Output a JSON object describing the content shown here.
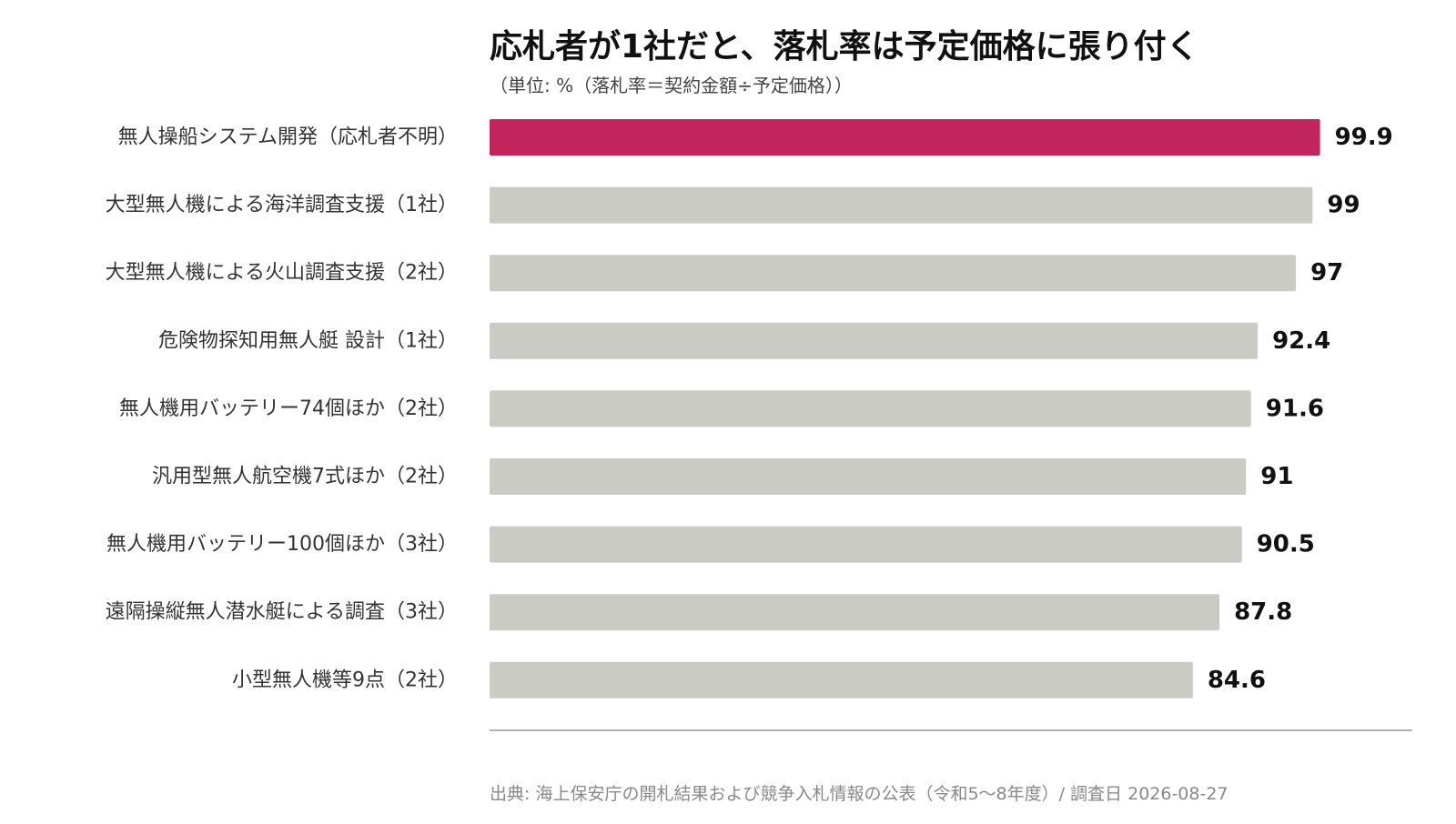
{
  "chart_data": {
    "type": "bar",
    "orientation": "horizontal",
    "title": "応札者が1社だと、落札率は予定価格に張り付く",
    "subtitle": "（単位: %（落札率＝契約金額÷予定価格））",
    "categories": [
      "無人操船システム開発（応札者不明）",
      "大型無人機による海洋調査支援（1社）",
      "大型無人機による火山調査支援（2社）",
      "危険物探知用無人艇 設計（1社）",
      "無人機用バッテリー74個ほか（2社）",
      "汎用型無人航空機7式ほか（2社）",
      "無人機用バッテリー100個ほか（3社）",
      "遠隔操縦無人潜水艇による調査（3社）",
      "小型無人機等9点（2社）"
    ],
    "values": [
      99.9,
      99,
      97,
      92.4,
      91.6,
      91,
      90.5,
      87.8,
      84.6
    ],
    "value_labels": [
      "99.9",
      "99",
      "97",
      "92.4",
      "91.6",
      "91",
      "90.5",
      "87.8",
      "84.6"
    ],
    "highlight_index": 0,
    "xlim": [
      0,
      111
    ],
    "grid": false,
    "colors": {
      "highlight": "#C2255C",
      "default": "#CBCBC6",
      "axis": "#999999"
    }
  },
  "source": "出典: 海上保安庁の開札結果および競争入札情報の公表（令和5〜8年度）/ 調査日 2026-08-27"
}
